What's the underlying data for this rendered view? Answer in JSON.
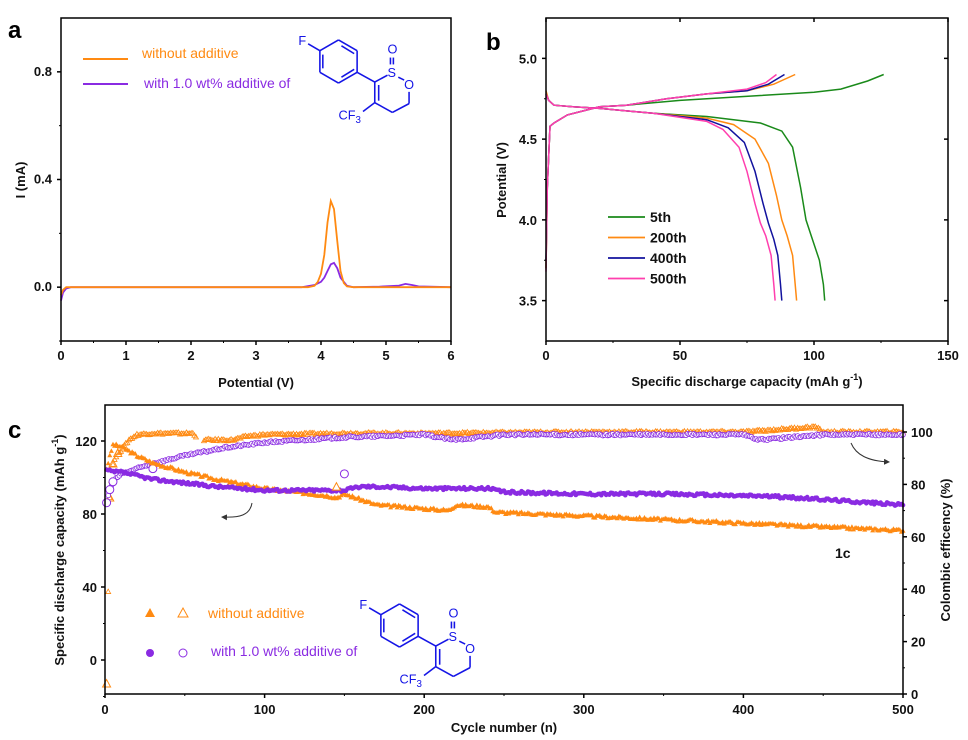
{
  "figure": {
    "colors": {
      "orange": "#ff8a12",
      "purple": "#8a2be2",
      "green": "#1a8a1a",
      "navy": "#12129e",
      "pink": "#ff3fae",
      "molecule": "#1515e6",
      "axis": "#000000"
    },
    "molecule": {
      "name": "molecule-structure",
      "labels": {
        "F": "F",
        "S": "S",
        "O_double": "O",
        "O_ring": "O",
        "CF3_main": "CF",
        "CF3_sub": "3"
      }
    }
  },
  "chart_data": [
    {
      "panel": "a",
      "type": "line",
      "title": "",
      "xlabel": "Potential (V)",
      "ylabel": "I (mA)",
      "xlim": [
        0,
        6
      ],
      "ylim": [
        -0.2,
        1.0
      ],
      "xticks": [
        0,
        1,
        2,
        3,
        4,
        5,
        6
      ],
      "xtick_labels": [
        "0",
        "1",
        "2",
        "3",
        "4",
        "5",
        "6"
      ],
      "yticks": [
        0.0,
        0.4,
        0.8
      ],
      "ytick_labels": [
        "0.0",
        "0.4",
        "0.8"
      ],
      "grid": false,
      "legend_position": "top-left",
      "series": [
        {
          "name": "without additive",
          "color_key": "orange",
          "x": [
            0.0,
            0.03,
            0.08,
            0.15,
            1.0,
            2.0,
            3.0,
            3.5,
            3.8,
            3.9,
            3.95,
            4.0,
            4.05,
            4.1,
            4.15,
            4.2,
            4.25,
            4.3,
            4.35,
            4.4,
            4.5,
            5.0,
            5.5,
            6.0
          ],
          "y": [
            -0.03,
            -0.01,
            0.0,
            0.0,
            0.0,
            0.0,
            0.0,
            0.0,
            0.0,
            0.005,
            0.02,
            0.05,
            0.12,
            0.24,
            0.32,
            0.29,
            0.17,
            0.06,
            0.015,
            0.003,
            0.0,
            0.0,
            0.0,
            0.0
          ]
        },
        {
          "name": "with 1.0 wt% additive of",
          "color_key": "purple",
          "x": [
            0.0,
            0.03,
            0.08,
            0.15,
            1.0,
            2.0,
            3.0,
            3.7,
            3.9,
            4.0,
            4.05,
            4.1,
            4.15,
            4.2,
            4.25,
            4.3,
            4.35,
            4.4,
            4.5,
            4.9,
            5.2,
            5.3,
            5.4,
            5.5,
            6.0
          ],
          "y": [
            -0.05,
            -0.02,
            -0.005,
            0.0,
            0.0,
            0.0,
            0.0,
            0.0,
            0.008,
            0.02,
            0.035,
            0.06,
            0.085,
            0.09,
            0.07,
            0.035,
            0.02,
            0.005,
            0.0,
            0.002,
            0.006,
            0.012,
            0.008,
            0.003,
            0.0
          ]
        }
      ]
    },
    {
      "panel": "b",
      "type": "line",
      "title": "",
      "xlabel": "Specific discharge capacity (mAh g",
      "xlabel_sup": "-1",
      "xlabel_end": ")",
      "ylabel": "Potential (V)",
      "xlim": [
        0,
        150
      ],
      "ylim": [
        3.25,
        5.25
      ],
      "xticks": [
        0,
        50,
        100,
        150
      ],
      "xtick_labels": [
        "0",
        "50",
        "100",
        "150"
      ],
      "yticks": [
        3.5,
        4.0,
        4.5,
        5.0
      ],
      "ytick_labels": [
        "3.5",
        "4.0",
        "4.5",
        "5.0"
      ],
      "grid": false,
      "legend_position": "lower-left",
      "series": [
        {
          "name": "5th",
          "color_key": "green",
          "charge": {
            "x": [
              0,
              0.5,
              1.5,
              3,
              8,
              15,
              20,
              30,
              50,
              80,
              100,
              110,
              120,
              126
            ],
            "y": [
              3.7,
              4.2,
              4.58,
              4.6,
              4.65,
              4.68,
              4.7,
              4.71,
              4.74,
              4.77,
              4.79,
              4.81,
              4.86,
              4.9
            ]
          },
          "discharge": {
            "x": [
              0,
              1,
              3,
              10,
              20,
              40,
              60,
              80,
              88,
              92,
              95,
              97,
              99,
              102,
              103.5,
              104
            ],
            "y": [
              4.78,
              4.74,
              4.71,
              4.7,
              4.69,
              4.66,
              4.64,
              4.6,
              4.55,
              4.45,
              4.2,
              4.0,
              3.9,
              3.75,
              3.6,
              3.5
            ]
          }
        },
        {
          "name": "200th",
          "color_key": "orange",
          "charge": {
            "x": [
              0,
              0.5,
              1.5,
              3,
              8,
              15,
              20,
              30,
              45,
              60,
              75,
              85,
              93
            ],
            "y": [
              3.7,
              4.2,
              4.58,
              4.6,
              4.65,
              4.68,
              4.7,
              4.71,
              4.75,
              4.78,
              4.8,
              4.84,
              4.9
            ]
          },
          "discharge": {
            "x": [
              0,
              1,
              3,
              10,
              20,
              40,
              60,
              70,
              78,
              83,
              86,
              88,
              90,
              92,
              93,
              93.5
            ],
            "y": [
              4.8,
              4.74,
              4.71,
              4.7,
              4.69,
              4.66,
              4.63,
              4.59,
              4.5,
              4.35,
              4.15,
              4.0,
              3.9,
              3.78,
              3.6,
              3.5
            ]
          }
        },
        {
          "name": "400th",
          "color_key": "navy",
          "charge": {
            "x": [
              0,
              0.5,
              1.5,
              3,
              8,
              15,
              20,
              30,
              45,
              60,
              75,
              83,
              89
            ],
            "y": [
              3.75,
              4.2,
              4.58,
              4.6,
              4.65,
              4.68,
              4.7,
              4.71,
              4.75,
              4.78,
              4.8,
              4.84,
              4.9
            ]
          },
          "discharge": {
            "x": [
              0,
              1,
              3,
              10,
              20,
              40,
              60,
              68,
              74,
              78,
              81,
              83,
              85,
              86.5,
              87.5,
              88
            ],
            "y": [
              4.78,
              4.74,
              4.71,
              4.7,
              4.69,
              4.66,
              4.62,
              4.57,
              4.48,
              4.3,
              4.1,
              3.98,
              3.88,
              3.78,
              3.6,
              3.5
            ]
          }
        },
        {
          "name": "500th",
          "color_key": "pink",
          "charge": {
            "x": [
              0,
              0.5,
              1.5,
              3,
              8,
              15,
              20,
              30,
              45,
              60,
              75,
              82,
              86
            ],
            "y": [
              3.68,
              4.2,
              4.58,
              4.6,
              4.65,
              4.68,
              4.7,
              4.71,
              4.75,
              4.78,
              4.81,
              4.85,
              4.9
            ]
          },
          "discharge": {
            "x": [
              0,
              1,
              3,
              10,
              20,
              40,
              60,
              66,
              72,
              75,
              78,
              80,
              82,
              84,
              85,
              85.5
            ],
            "y": [
              4.78,
              4.74,
              4.71,
              4.7,
              4.69,
              4.66,
              4.61,
              4.56,
              4.45,
              4.3,
              4.1,
              3.98,
              3.9,
              3.78,
              3.6,
              3.5
            ]
          }
        }
      ]
    },
    {
      "panel": "c",
      "type": "scatter",
      "title": "",
      "xlabel": "Cycle number (n)",
      "ylabel_left": "Specific discharge capacity (mAh g",
      "ylabel_left_sup": "-1",
      "ylabel_left_end": ")",
      "ylabel_right": "Colombic efficency (%)",
      "annotation": "1c",
      "xlim": [
        0,
        500
      ],
      "ylim_left": [
        -20,
        140
      ],
      "ylim_right": [
        0,
        110
      ],
      "xticks": [
        0,
        100,
        200,
        300,
        400,
        500
      ],
      "xtick_labels": [
        "0",
        "100",
        "200",
        "300",
        "400",
        "500"
      ],
      "yticks_left": [
        0,
        40,
        80,
        120
      ],
      "ytick_labels_left": [
        "0",
        "40",
        "80",
        "120"
      ],
      "yticks_right": [
        0,
        20,
        40,
        60,
        80,
        100
      ],
      "ytick_labels_right": [
        "0",
        "20",
        "40",
        "60",
        "80",
        "100"
      ],
      "grid": false,
      "legend_position": "lower-left",
      "legend": [
        {
          "label": "without additive",
          "color_key": "orange",
          "markers": [
            "filled-triangle",
            "open-triangle"
          ]
        },
        {
          "label": "with 1.0 wt% additive of",
          "color_key": "purple",
          "markers": [
            "half-filled-circle",
            "open-circle"
          ]
        }
      ],
      "series": [
        {
          "name": "without additive - capacity",
          "axis": "left",
          "marker": "filled-triangle",
          "color_key": "orange",
          "x": [
            1,
            5,
            10,
            20,
            30,
            50,
            70,
            100,
            120,
            140,
            145,
            150,
            160,
            170,
            200,
            215,
            220,
            240,
            245,
            300,
            350,
            400,
            450,
            500
          ],
          "y": [
            105,
            118,
            117,
            112,
            108,
            103,
            99,
            94,
            92,
            90,
            89,
            91,
            88,
            85,
            83,
            82,
            85,
            84,
            81,
            79,
            77,
            75,
            73,
            71
          ]
        },
        {
          "name": "without additive - CE",
          "axis": "right",
          "marker": "open-triangle",
          "color_key": "orange",
          "x": [
            1,
            3,
            5,
            8,
            10,
            15,
            20,
            30,
            40,
            50,
            55,
            60,
            80,
            90,
            100,
            150,
            200,
            300,
            400,
            445,
            450,
            500
          ],
          "y": [
            4,
            75,
            88,
            92,
            93,
            97,
            99,
            99.5,
            99.5,
            99.5,
            99.5,
            97,
            97,
            98.5,
            99,
            99.5,
            99.5,
            100,
            100,
            102,
            100,
            100
          ]
        },
        {
          "name": "with additive - capacity",
          "axis": "left",
          "marker": "half-filled-circle",
          "color_key": "purple",
          "x": [
            1,
            5,
            10,
            20,
            30,
            50,
            70,
            100,
            120,
            150,
            160,
            170,
            200,
            220,
            240,
            245,
            250,
            300,
            350,
            400,
            410,
            450,
            500
          ],
          "y": [
            104,
            103,
            103,
            101,
            99,
            97,
            95,
            93,
            93,
            93,
            95,
            95,
            94,
            94,
            94,
            93,
            92,
            91,
            91,
            90,
            90,
            88,
            85
          ]
        },
        {
          "name": "with additive - CE",
          "axis": "right",
          "marker": "open-circle",
          "color_key": "purple",
          "x": [
            1,
            3,
            5,
            10,
            20,
            30,
            50,
            75,
            100,
            125,
            150,
            175,
            200,
            218,
            250,
            300,
            350,
            400,
            410,
            450,
            500
          ],
          "y": [
            73,
            78,
            81,
            84,
            86,
            88,
            91,
            94,
            96,
            97,
            98,
            98.5,
            99,
            97,
            99,
            99,
            99,
            99,
            97,
            99,
            99
          ]
        }
      ],
      "outliers": [
        {
          "series": "without additive - CE",
          "x": 145,
          "y_left": 95
        },
        {
          "series": "with additive - CE",
          "x": 150,
          "y_left": 102
        }
      ]
    }
  ],
  "panel_labels": {
    "a": "a",
    "b": "b",
    "c": "c"
  }
}
